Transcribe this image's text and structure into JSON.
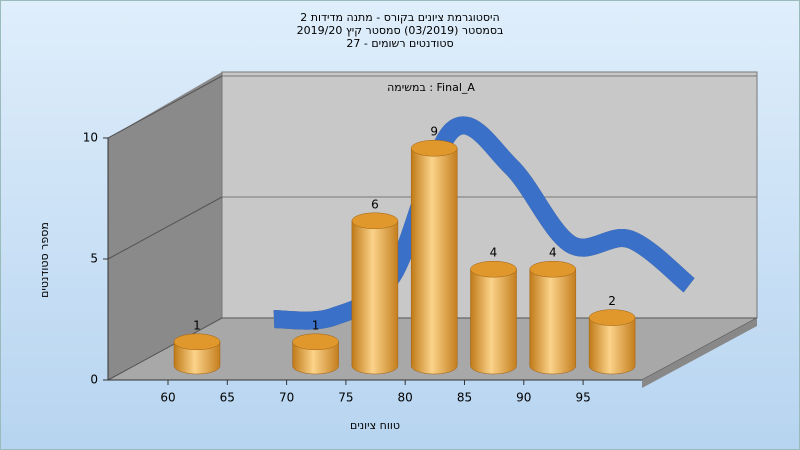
{
  "chart_data": {
    "type": "bar3d",
    "title": [
      "היסטוגרמת ציונים בקורס - מתנה מדידות 2",
      "בסמסטר  (03/2019)  סמסטר קיץ 2019/20",
      "סטודנטים רשומים - 27"
    ],
    "annotation": "במשימה : Final_A",
    "y_label": "מספר סטודנטים",
    "x_label": "טווח ציונים",
    "categories": [
      "60",
      "65",
      "70",
      "75",
      "80",
      "85",
      "90",
      "95"
    ],
    "values": [
      1,
      0,
      1,
      6,
      9,
      4,
      4,
      2
    ],
    "color": "#e8a640",
    "curve": {
      "color": "#3a70c8",
      "values": [
        0.2,
        0.3,
        2,
        8,
        6.5,
        3.3,
        3.5,
        1.6
      ]
    },
    "ylim": [
      0,
      10
    ],
    "yticks": [
      0,
      5,
      10
    ],
    "grid": true
  }
}
